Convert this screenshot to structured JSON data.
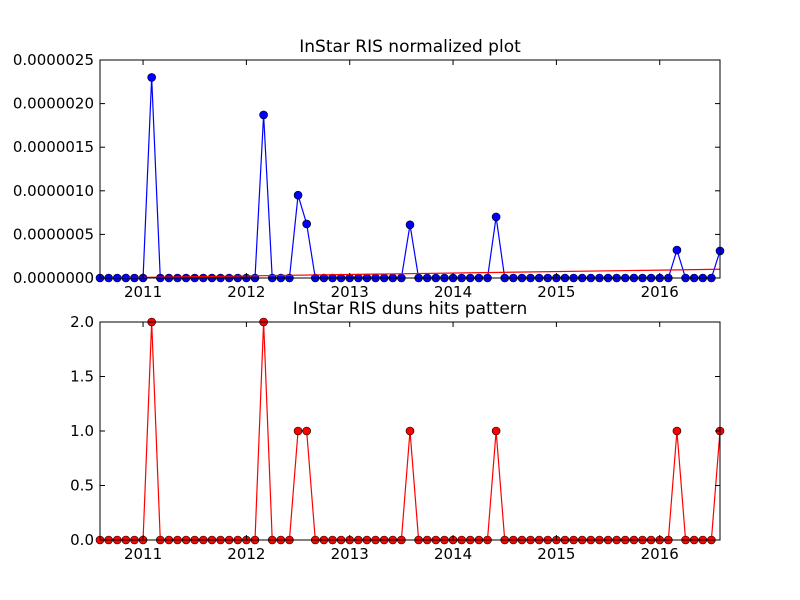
{
  "chart_data": [
    {
      "type": "line",
      "title": "InStar RIS normalized plot",
      "xlabel": "",
      "ylabel": "",
      "ylim": [
        0,
        2.5e-06
      ],
      "xlim": [
        "2010-08",
        "2016-08"
      ],
      "y_ticks": [
        "0.0000000",
        "0.0000005",
        "0.0000010",
        "0.0000015",
        "0.0000020",
        "0.0000025"
      ],
      "x_ticks": [
        "2011",
        "2012",
        "2013",
        "2014",
        "2015",
        "2016"
      ],
      "grid": false,
      "series": [
        {
          "color": "#0000ff",
          "marker": "circle",
          "x": [
            "2010-08",
            "2010-09",
            "2010-10",
            "2010-11",
            "2010-12",
            "2011-01",
            "2011-02",
            "2011-03",
            "2011-04",
            "2011-05",
            "2011-06",
            "2011-07",
            "2011-08",
            "2011-09",
            "2011-10",
            "2011-11",
            "2011-12",
            "2012-01",
            "2012-02",
            "2012-03",
            "2012-04",
            "2012-05",
            "2012-06",
            "2012-07",
            "2012-08",
            "2012-09",
            "2012-10",
            "2012-11",
            "2012-12",
            "2013-01",
            "2013-02",
            "2013-03",
            "2013-04",
            "2013-05",
            "2013-06",
            "2013-07",
            "2013-08",
            "2013-09",
            "2013-10",
            "2013-11",
            "2013-12",
            "2014-01",
            "2014-02",
            "2014-03",
            "2014-04",
            "2014-05",
            "2014-06",
            "2014-07",
            "2014-08",
            "2014-09",
            "2014-10",
            "2014-11",
            "2014-12",
            "2015-01",
            "2015-02",
            "2015-03",
            "2015-04",
            "2015-05",
            "2015-06",
            "2015-07",
            "2015-08",
            "2015-09",
            "2015-10",
            "2015-11",
            "2015-12",
            "2016-01",
            "2016-02",
            "2016-03",
            "2016-04",
            "2016-05",
            "2016-06",
            "2016-07",
            "2016-08"
          ],
          "values": [
            0,
            0,
            0,
            0,
            0,
            0,
            2.3e-06,
            0,
            0,
            0,
            0,
            0,
            0,
            0,
            0,
            0,
            0,
            0,
            0,
            1.87e-06,
            0,
            0,
            0,
            9.5e-07,
            6.2e-07,
            0,
            0,
            0,
            0,
            0,
            0,
            0,
            0,
            0,
            0,
            0,
            6.1e-07,
            0,
            0,
            0,
            0,
            0,
            0,
            0,
            0,
            0,
            7e-07,
            0,
            0,
            0,
            0,
            0,
            0,
            0,
            0,
            0,
            0,
            0,
            0,
            0,
            0,
            0,
            0,
            0,
            0,
            0,
            0,
            3.2e-07,
            0,
            0,
            0,
            0,
            3.1e-07
          ]
        },
        {
          "type": "trend",
          "color": "#ff0000",
          "marker": "none",
          "x": [
            "2010-08",
            "2016-08"
          ],
          "values": [
            0.0,
            1e-07
          ]
        }
      ]
    },
    {
      "type": "line",
      "title": "InStar RIS duns hits pattern",
      "xlabel": "",
      "ylabel": "",
      "ylim": [
        0,
        2.0
      ],
      "xlim": [
        "2010-08",
        "2016-08"
      ],
      "y_ticks": [
        "0.0",
        "0.5",
        "1.0",
        "1.5",
        "2.0"
      ],
      "x_ticks": [
        "2011",
        "2012",
        "2013",
        "2014",
        "2015",
        "2016"
      ],
      "grid": false,
      "series": [
        {
          "color": "#ff0000",
          "marker": "circle",
          "x": [
            "2010-08",
            "2010-09",
            "2010-10",
            "2010-11",
            "2010-12",
            "2011-01",
            "2011-02",
            "2011-03",
            "2011-04",
            "2011-05",
            "2011-06",
            "2011-07",
            "2011-08",
            "2011-09",
            "2011-10",
            "2011-11",
            "2011-12",
            "2012-01",
            "2012-02",
            "2012-03",
            "2012-04",
            "2012-05",
            "2012-06",
            "2012-07",
            "2012-08",
            "2012-09",
            "2012-10",
            "2012-11",
            "2012-12",
            "2013-01",
            "2013-02",
            "2013-03",
            "2013-04",
            "2013-05",
            "2013-06",
            "2013-07",
            "2013-08",
            "2013-09",
            "2013-10",
            "2013-11",
            "2013-12",
            "2014-01",
            "2014-02",
            "2014-03",
            "2014-04",
            "2014-05",
            "2014-06",
            "2014-07",
            "2014-08",
            "2014-09",
            "2014-10",
            "2014-11",
            "2014-12",
            "2015-01",
            "2015-02",
            "2015-03",
            "2015-04",
            "2015-05",
            "2015-06",
            "2015-07",
            "2015-08",
            "2015-09",
            "2015-10",
            "2015-11",
            "2015-12",
            "2016-01",
            "2016-02",
            "2016-03",
            "2016-04",
            "2016-05",
            "2016-06",
            "2016-07",
            "2016-08"
          ],
          "values": [
            0,
            0,
            0,
            0,
            0,
            0,
            2,
            0,
            0,
            0,
            0,
            0,
            0,
            0,
            0,
            0,
            0,
            0,
            0,
            2,
            0,
            0,
            0,
            1,
            1,
            0,
            0,
            0,
            0,
            0,
            0,
            0,
            0,
            0,
            0,
            0,
            1,
            0,
            0,
            0,
            0,
            0,
            0,
            0,
            0,
            0,
            1,
            0,
            0,
            0,
            0,
            0,
            0,
            0,
            0,
            0,
            0,
            0,
            0,
            0,
            0,
            0,
            0,
            0,
            0,
            0,
            0,
            1,
            0,
            0,
            0,
            0,
            1
          ]
        }
      ]
    }
  ]
}
